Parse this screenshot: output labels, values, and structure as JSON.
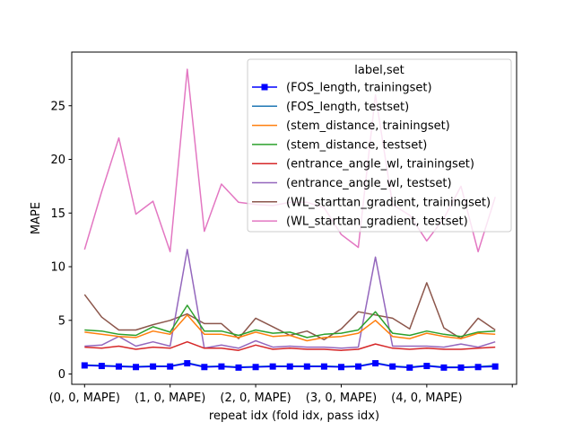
{
  "chart_data": {
    "type": "line",
    "xlabel": "repeat idx (fold idx, pass idx)",
    "ylabel": "MAPE",
    "ylim": [
      -0.96,
      30.0
    ],
    "xlim": [
      -1.5,
      50.5
    ],
    "yticks": [
      0,
      5,
      10,
      15,
      20,
      25
    ],
    "xticks": [
      {
        "pos": 0,
        "label": "(0, 0, MAPE)"
      },
      {
        "pos": 10,
        "label": "(1, 0, MAPE)"
      },
      {
        "pos": 20,
        "label": "(2, 0, MAPE)"
      },
      {
        "pos": 30,
        "label": "(3, 0, MAPE)"
      },
      {
        "pos": 40,
        "label": "(4, 0, MAPE)"
      },
      {
        "pos": 50,
        "label": ""
      }
    ],
    "x": [
      0,
      2,
      4,
      6,
      8,
      10,
      12,
      14,
      16,
      18,
      20,
      22,
      24,
      26,
      28,
      30,
      32,
      34,
      36,
      38,
      40,
      42,
      44,
      46,
      48
    ],
    "legend": {
      "title": "label,set",
      "position": "upper right"
    },
    "series": [
      {
        "name": "(FOS_length, trainingset)",
        "color": "#0000ff",
        "marker": "square",
        "values": [
          0.8,
          0.75,
          0.7,
          0.65,
          0.7,
          0.7,
          1.0,
          0.65,
          0.7,
          0.6,
          0.65,
          0.7,
          0.7,
          0.7,
          0.7,
          0.65,
          0.7,
          1.0,
          0.7,
          0.6,
          0.75,
          0.6,
          0.6,
          0.65,
          0.7
        ]
      },
      {
        "name": "(FOS_length, testset)",
        "color": "#1f77b4",
        "marker": "none",
        "values": [
          0.85,
          0.8,
          0.75,
          0.7,
          0.75,
          0.75,
          1.05,
          0.7,
          0.75,
          0.65,
          0.7,
          0.75,
          0.75,
          0.75,
          0.75,
          0.7,
          0.75,
          1.05,
          0.75,
          0.65,
          0.8,
          0.65,
          0.65,
          0.7,
          0.8
        ]
      },
      {
        "name": "(stem_distance, trainingset)",
        "color": "#ff7f0e",
        "marker": "none",
        "values": [
          3.9,
          3.7,
          3.5,
          3.4,
          4.0,
          3.7,
          5.5,
          3.7,
          3.7,
          3.4,
          3.9,
          3.5,
          3.6,
          3.1,
          3.4,
          3.5,
          3.8,
          5.0,
          3.5,
          3.3,
          3.8,
          3.5,
          3.3,
          3.8,
          3.7
        ]
      },
      {
        "name": "(stem_distance, testset)",
        "color": "#2ca02c",
        "marker": "none",
        "values": [
          4.1,
          4.0,
          3.7,
          3.6,
          4.4,
          3.9,
          6.4,
          4.0,
          4.0,
          3.6,
          4.1,
          3.8,
          3.9,
          3.4,
          3.7,
          3.8,
          4.1,
          5.8,
          3.8,
          3.6,
          4.0,
          3.7,
          3.5,
          3.9,
          4.0
        ]
      },
      {
        "name": "(entrance_angle_wl, trainingset)",
        "color": "#d62728",
        "marker": "none",
        "values": [
          2.5,
          2.4,
          2.6,
          2.3,
          2.5,
          2.4,
          3.0,
          2.4,
          2.4,
          2.2,
          2.7,
          2.3,
          2.4,
          2.3,
          2.3,
          2.2,
          2.3,
          2.8,
          2.4,
          2.3,
          2.4,
          2.3,
          2.3,
          2.4,
          2.5
        ]
      },
      {
        "name": "(entrance_angle_wl, testset)",
        "color": "#9467bd",
        "marker": "none",
        "values": [
          2.6,
          2.7,
          3.5,
          2.6,
          3.0,
          2.6,
          11.6,
          2.4,
          2.7,
          2.4,
          3.1,
          2.5,
          2.6,
          2.5,
          2.5,
          2.4,
          2.5,
          10.9,
          2.6,
          2.6,
          2.6,
          2.5,
          2.8,
          2.5,
          3.0
        ]
      },
      {
        "name": "(WL_starttan_gradient, trainingset)",
        "color": "#8c564b",
        "marker": "none",
        "values": [
          7.4,
          5.3,
          4.1,
          4.1,
          4.6,
          5.0,
          5.6,
          4.7,
          4.7,
          3.3,
          5.2,
          4.4,
          3.6,
          4.0,
          3.2,
          4.2,
          5.8,
          5.5,
          5.2,
          4.2,
          8.5,
          4.3,
          3.3,
          5.2,
          4.1
        ]
      },
      {
        "name": "(WL_starttan_gradient, testset)",
        "color": "#e377c2",
        "marker": "none",
        "values": [
          11.6,
          17.0,
          22.0,
          14.9,
          16.1,
          11.4,
          28.4,
          13.3,
          17.7,
          16.0,
          15.8,
          15.7,
          16.0,
          16.0,
          15.5,
          13.0,
          11.8,
          26.0,
          15.8,
          14.8,
          12.4,
          14.5,
          17.5,
          11.4,
          16.5
        ]
      }
    ]
  }
}
